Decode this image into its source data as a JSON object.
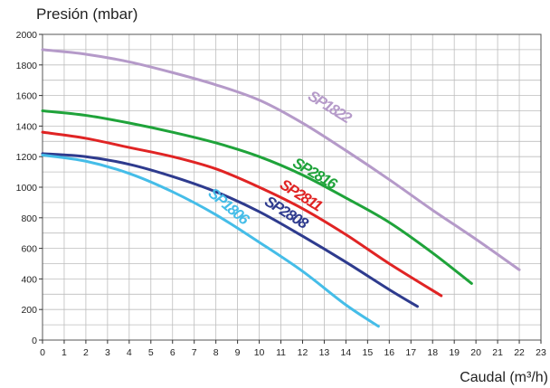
{
  "chart_data": {
    "type": "line",
    "title": "",
    "ylabel": "Presión (mbar)",
    "xlabel": "Caudal (m³/h)",
    "xlim": [
      0,
      23
    ],
    "ylim": [
      0,
      2000
    ],
    "x_ticks": [
      0,
      1,
      2,
      3,
      4,
      5,
      6,
      7,
      8,
      9,
      10,
      11,
      12,
      13,
      14,
      15,
      16,
      17,
      18,
      19,
      20,
      21,
      22,
      23
    ],
    "y_ticks": [
      0,
      200,
      400,
      600,
      800,
      1000,
      1200,
      1400,
      1600,
      1800,
      2000
    ],
    "grid": true,
    "legend": "inline-labels",
    "series": [
      {
        "name": "SP1822",
        "color": "#b59ac9",
        "x": [
          0,
          2,
          4,
          6,
          8,
          10,
          12,
          14,
          16,
          18,
          20,
          22
        ],
        "y": [
          1900,
          1870,
          1820,
          1750,
          1670,
          1570,
          1420,
          1240,
          1050,
          850,
          660,
          460
        ],
        "label_at": {
          "x": 12.2,
          "y": 1580,
          "rotate": 32
        }
      },
      {
        "name": "SP2816",
        "color": "#1fa33a",
        "x": [
          0,
          2,
          4,
          6,
          8,
          10,
          12,
          14,
          16,
          18,
          19.8
        ],
        "y": [
          1500,
          1470,
          1420,
          1360,
          1290,
          1200,
          1080,
          930,
          770,
          570,
          370
        ],
        "label_at": {
          "x": 11.5,
          "y": 1140,
          "rotate": 30
        }
      },
      {
        "name": "SP2811",
        "color": "#e02424",
        "x": [
          0,
          2,
          4,
          6,
          8,
          10,
          12,
          14,
          16,
          18.4
        ],
        "y": [
          1360,
          1320,
          1260,
          1200,
          1120,
          1000,
          860,
          690,
          500,
          290
        ],
        "label_at": {
          "x": 10.9,
          "y": 1000,
          "rotate": 32
        }
      },
      {
        "name": "SP2808",
        "color": "#2e3b8e",
        "x": [
          0,
          2,
          4,
          6,
          8,
          10,
          12,
          14,
          16,
          17.3
        ],
        "y": [
          1220,
          1200,
          1150,
          1070,
          970,
          840,
          680,
          510,
          330,
          220
        ],
        "label_at": {
          "x": 10.2,
          "y": 890,
          "rotate": 32
        }
      },
      {
        "name": "SP1806",
        "color": "#45bde8",
        "x": [
          0,
          2,
          4,
          6,
          8,
          10,
          12,
          14,
          15.5
        ],
        "y": [
          1210,
          1170,
          1090,
          970,
          820,
          640,
          450,
          230,
          90
        ],
        "label_at": {
          "x": 7.6,
          "y": 950,
          "rotate": 40
        }
      }
    ]
  }
}
